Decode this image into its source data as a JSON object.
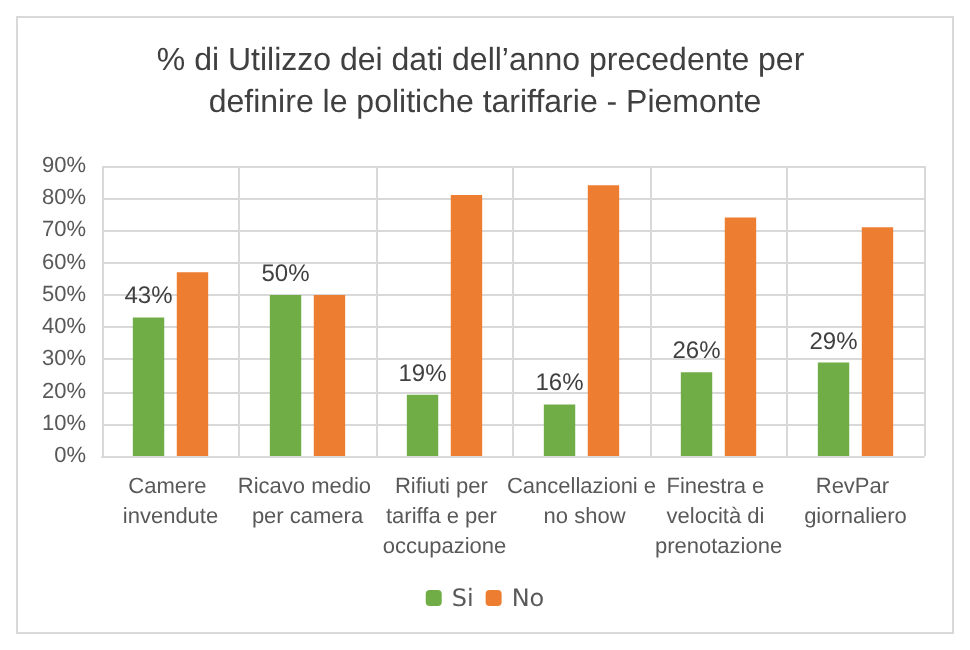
{
  "chart_data": {
    "type": "bar",
    "title": "% di Utilizzo dei dati dell’anno precedente per definire le politiche tariffarie - Piemonte",
    "categories": [
      "Camere invendute",
      "Ricavo medio per camera",
      "Rifiuti per tariffa e per occupazione",
      "Cancellazioni e no show",
      "Finestra e velocità di prenotazione",
      "RevPar giornaliero"
    ],
    "series": [
      {
        "name": "Si",
        "color": "#70ad47",
        "values": [
          43,
          50,
          19,
          16,
          26,
          29
        ],
        "value_labels": [
          "43%",
          "50%",
          "19%",
          "16%",
          "26%",
          "29%"
        ]
      },
      {
        "name": "No",
        "color": "#ed7d31",
        "values": [
          57,
          50,
          81,
          84,
          74,
          71
        ]
      }
    ],
    "ylim": [
      0,
      90
    ],
    "yticks": [
      {
        "value": 0,
        "label": "0%"
      },
      {
        "value": 10,
        "label": "10%"
      },
      {
        "value": 20,
        "label": "20%"
      },
      {
        "value": 30,
        "label": "30%"
      },
      {
        "value": 40,
        "label": "40%"
      },
      {
        "value": 50,
        "label": "50%"
      },
      {
        "value": 60,
        "label": "60%"
      },
      {
        "value": 70,
        "label": "70%"
      },
      {
        "value": 80,
        "label": "80%"
      },
      {
        "value": 90,
        "label": "90%"
      }
    ],
    "grid": true,
    "legend": "bottom"
  }
}
